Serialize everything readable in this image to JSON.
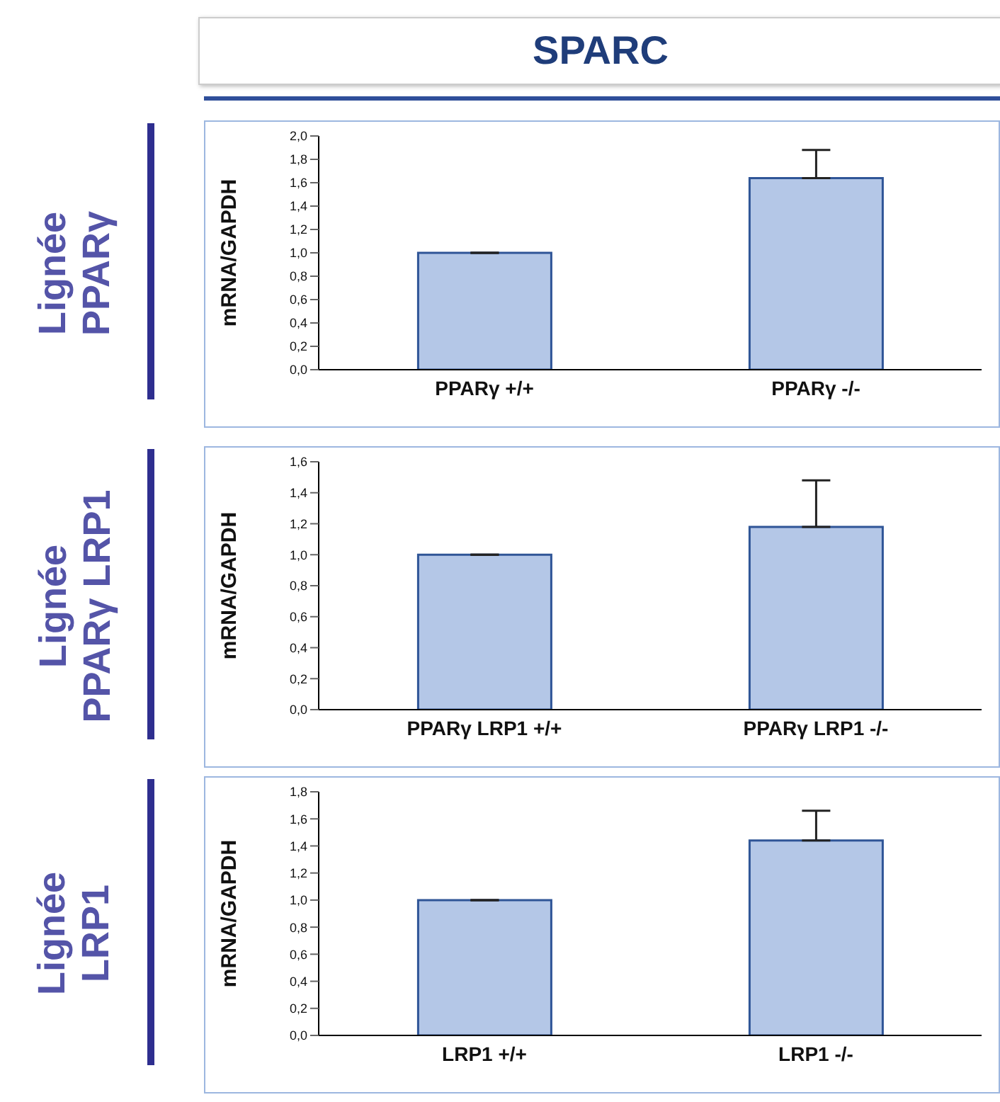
{
  "chart_data": [
    {
      "type": "bar",
      "title": "SPARC",
      "subtitle": "Lignée PPARγ",
      "ylabel": "mRNA/GAPDH",
      "categories": [
        "PPARγ +/+",
        "PPARγ -/-"
      ],
      "values": [
        1.0,
        1.64
      ],
      "errors": [
        null,
        [
          1.64,
          1.88
        ]
      ],
      "color": "#b4c7e7",
      "ylim": [
        0,
        2
      ],
      "yticks": [
        {
          "value": 0,
          "label": "0,0"
        },
        {
          "value": 0.2,
          "label": "0,2"
        },
        {
          "value": 0.4,
          "label": "0,4"
        },
        {
          "value": 0.6,
          "label": "0,6"
        },
        {
          "value": 0.8,
          "label": "0,8"
        },
        {
          "value": 1,
          "label": "1,0"
        },
        {
          "value": 1.2,
          "label": "1,2"
        },
        {
          "value": 1.4,
          "label": "1,4"
        },
        {
          "value": 1.6,
          "label": "1,6"
        },
        {
          "value": 1.8,
          "label": "1,8"
        },
        {
          "value": 2,
          "label": "2,0"
        }
      ]
    },
    {
      "type": "bar",
      "subtitle": "Lignée PPARγ LRP1",
      "ylabel": "mRNA/GAPDH",
      "categories": [
        "PPARγ LRP1  +/+",
        "PPARγ LRP1  -/-"
      ],
      "values": [
        1.0,
        1.18
      ],
      "errors": [
        null,
        [
          1.18,
          1.48
        ]
      ],
      "color": "#b4c7e7",
      "ylim": [
        0,
        1.6
      ],
      "yticks": [
        {
          "value": 0,
          "label": "0,0"
        },
        {
          "value": 0.2,
          "label": "0,2"
        },
        {
          "value": 0.4,
          "label": "0,4"
        },
        {
          "value": 0.6,
          "label": "0,6"
        },
        {
          "value": 0.8,
          "label": "0,8"
        },
        {
          "value": 1,
          "label": "1,0"
        },
        {
          "value": 1.2,
          "label": "1,2"
        },
        {
          "value": 1.4,
          "label": "1,4"
        },
        {
          "value": 1.6,
          "label": "1,6"
        }
      ]
    },
    {
      "type": "bar",
      "subtitle": "Lignée LRP1",
      "ylabel": "mRNA/GAPDH",
      "categories": [
        "LRP1 +/+",
        "LRP1 -/-"
      ],
      "values": [
        1.0,
        1.44
      ],
      "errors": [
        null,
        [
          1.44,
          1.66
        ]
      ],
      "color": "#b4c7e7",
      "ylim": [
        0,
        1.8
      ],
      "yticks": [
        {
          "value": 0,
          "label": "0,0"
        },
        {
          "value": 0.2,
          "label": "0,2"
        },
        {
          "value": 0.4,
          "label": "0,4"
        },
        {
          "value": 0.6,
          "label": "0,6"
        },
        {
          "value": 0.8,
          "label": "0,8"
        },
        {
          "value": 1,
          "label": "1,0"
        },
        {
          "value": 1.2,
          "label": "1,2"
        },
        {
          "value": 1.4,
          "label": "1,4"
        },
        {
          "value": 1.6,
          "label": "1,6"
        },
        {
          "value": 1.8,
          "label": "1,8"
        }
      ]
    }
  ]
}
